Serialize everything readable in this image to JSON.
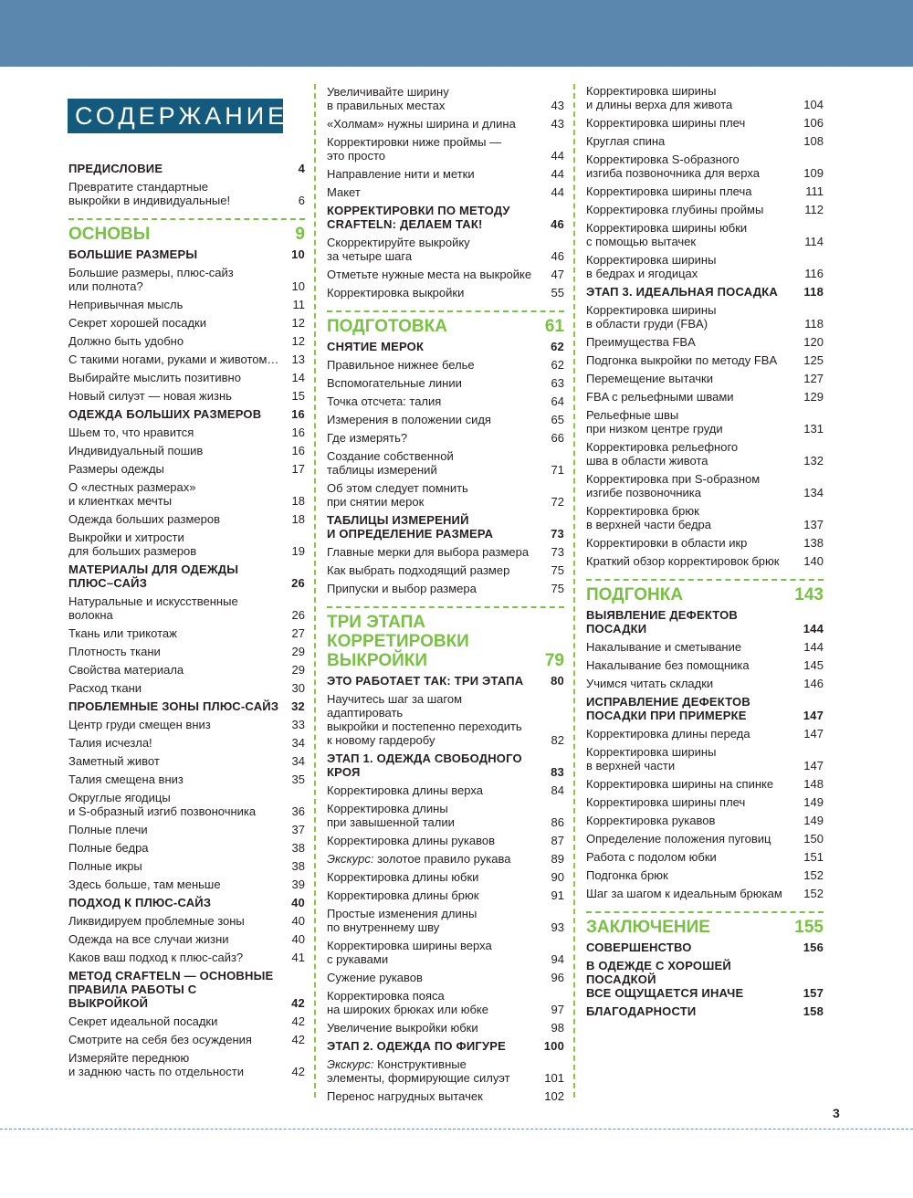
{
  "title": "СОДЕРЖАНИЕ",
  "page_number": "3",
  "colors": {
    "band": "#5b86ad",
    "title_bg": "#135a7c",
    "section": "#79c143"
  },
  "columns": [
    [
      {
        "t": "head",
        "lines": [
          "ПРЕДИСЛОВИЕ"
        ],
        "p": "4"
      },
      {
        "t": "sub",
        "lines": [
          "Превратите стандартные",
          "выкройки в индивидуальные!"
        ],
        "p": "6"
      },
      {
        "t": "section",
        "lines": [
          "ОСНОВЫ"
        ],
        "p": "9"
      },
      {
        "t": "head",
        "lines": [
          "БОЛЬШИЕ РАЗМЕРЫ"
        ],
        "p": "10"
      },
      {
        "t": "sub",
        "lines": [
          "Большие размеры, плюс-сайз",
          "или полнота?"
        ],
        "p": "10"
      },
      {
        "t": "sub",
        "lines": [
          "Непривычная мысль"
        ],
        "p": "11"
      },
      {
        "t": "sub",
        "lines": [
          "Секрет хорошей посадки"
        ],
        "p": "12"
      },
      {
        "t": "sub",
        "lines": [
          "Должно быть удобно"
        ],
        "p": "12"
      },
      {
        "t": "sub",
        "lines": [
          "С такими ногами, руками и животом…"
        ],
        "p": "13"
      },
      {
        "t": "sub",
        "lines": [
          "Выбирайте мыслить позитивно"
        ],
        "p": "14"
      },
      {
        "t": "sub",
        "lines": [
          "Новый силуэт — новая жизнь"
        ],
        "p": "15"
      },
      {
        "t": "head",
        "lines": [
          "ОДЕЖДА БОЛЬШИХ РАЗМЕРОВ"
        ],
        "p": "16"
      },
      {
        "t": "sub",
        "lines": [
          "Шьем то, что нравится"
        ],
        "p": "16"
      },
      {
        "t": "sub",
        "lines": [
          "Индивидуальный пошив"
        ],
        "p": "16"
      },
      {
        "t": "sub",
        "lines": [
          "Размеры одежды"
        ],
        "p": "17"
      },
      {
        "t": "sub",
        "lines": [
          "О «лестных размерах»",
          "и клиентках мечты"
        ],
        "p": "18"
      },
      {
        "t": "sub",
        "lines": [
          "Одежда больших размеров"
        ],
        "p": "18"
      },
      {
        "t": "sub",
        "lines": [
          "Выкройки и хитрости",
          "для больших размеров"
        ],
        "p": "19"
      },
      {
        "t": "head",
        "lines": [
          "МАТЕРИАЛЫ ДЛЯ ОДЕЖДЫ",
          "ПЛЮС–САЙЗ"
        ],
        "p": "26"
      },
      {
        "t": "sub",
        "lines": [
          "Натуральные и искусственные волокна"
        ],
        "p": "26"
      },
      {
        "t": "sub",
        "lines": [
          "Ткань или трикотаж"
        ],
        "p": "27"
      },
      {
        "t": "sub",
        "lines": [
          "Плотность ткани"
        ],
        "p": "29"
      },
      {
        "t": "sub",
        "lines": [
          "Свойства материала"
        ],
        "p": "29"
      },
      {
        "t": "sub",
        "lines": [
          "Расход ткани"
        ],
        "p": "30"
      },
      {
        "t": "head",
        "lines": [
          "ПРОБЛЕМНЫЕ ЗОНЫ ПЛЮС-САЙЗ"
        ],
        "p": "32"
      },
      {
        "t": "sub",
        "lines": [
          "Центр груди смещен вниз"
        ],
        "p": "33"
      },
      {
        "t": "sub",
        "lines": [
          "Талия исчезла!"
        ],
        "p": "34"
      },
      {
        "t": "sub",
        "lines": [
          "Заметный живот"
        ],
        "p": "34"
      },
      {
        "t": "sub",
        "lines": [
          "Талия смещена вниз"
        ],
        "p": "35"
      },
      {
        "t": "sub",
        "lines": [
          "Округлые ягодицы",
          "и S-образный изгиб позвоночника"
        ],
        "p": "36"
      },
      {
        "t": "sub",
        "lines": [
          "Полные плечи"
        ],
        "p": "37"
      },
      {
        "t": "sub",
        "lines": [
          "Полные бедра"
        ],
        "p": "38"
      },
      {
        "t": "sub",
        "lines": [
          "Полные икры"
        ],
        "p": "38"
      },
      {
        "t": "sub",
        "lines": [
          "Здесь больше, там меньше"
        ],
        "p": "39"
      },
      {
        "t": "head",
        "lines": [
          "ПОДХОД К ПЛЮС-САЙЗ"
        ],
        "p": "40"
      },
      {
        "t": "sub",
        "lines": [
          "Ликвидируем проблемные зоны"
        ],
        "p": "40"
      },
      {
        "t": "sub",
        "lines": [
          "Одежда на все случаи жизни"
        ],
        "p": "40"
      },
      {
        "t": "sub",
        "lines": [
          "Каков ваш подход к плюс-сайз?"
        ],
        "p": "41"
      },
      {
        "t": "head",
        "lines": [
          "МЕТОД CRAFTELN — ОСНОВНЫЕ",
          "ПРАВИЛА РАБОТЫ С ВЫКРОЙКОЙ"
        ],
        "p": "42"
      },
      {
        "t": "sub",
        "lines": [
          "Секрет идеальной посадки"
        ],
        "p": "42"
      },
      {
        "t": "sub",
        "lines": [
          "Смотрите на себя без осуждения"
        ],
        "p": "42"
      },
      {
        "t": "sub",
        "lines": [
          "Измеряйте переднюю",
          "и заднюю часть по отдельности"
        ],
        "p": "42"
      }
    ],
    [
      {
        "t": "sub",
        "lines": [
          "Увеличивайте ширину",
          "в правильных местах"
        ],
        "p": "43"
      },
      {
        "t": "sub",
        "lines": [
          "«Холмам» нужны ширина и длина"
        ],
        "p": "43"
      },
      {
        "t": "sub",
        "lines": [
          "Корректировки ниже проймы —",
          "это просто"
        ],
        "p": "44"
      },
      {
        "t": "sub",
        "lines": [
          "Направление нити и метки"
        ],
        "p": "44"
      },
      {
        "t": "sub",
        "lines": [
          "Макет"
        ],
        "p": "44"
      },
      {
        "t": "head",
        "lines": [
          "КОРРЕКТИРОВКИ ПО МЕТОДУ",
          "CRAFTELN: ДЕЛАЕМ ТАК!"
        ],
        "p": "46"
      },
      {
        "t": "sub",
        "lines": [
          "Скорректируйте выкройку",
          "за четыре шага"
        ],
        "p": "46"
      },
      {
        "t": "sub",
        "lines": [
          "Отметьте нужные места на выкройке"
        ],
        "p": "47"
      },
      {
        "t": "sub",
        "lines": [
          "Корректировка выкройки"
        ],
        "p": "55"
      },
      {
        "t": "section",
        "lines": [
          "ПОДГОТОВКА"
        ],
        "p": "61"
      },
      {
        "t": "head",
        "lines": [
          "СНЯТИЕ МЕРОК"
        ],
        "p": "62"
      },
      {
        "t": "sub",
        "lines": [
          "Правильное нижнее белье"
        ],
        "p": "62"
      },
      {
        "t": "sub",
        "lines": [
          "Вспомогательные линии"
        ],
        "p": "63"
      },
      {
        "t": "sub",
        "lines": [
          "Точка отсчета: талия"
        ],
        "p": "64"
      },
      {
        "t": "sub",
        "lines": [
          "Измерения в положении сидя"
        ],
        "p": "65"
      },
      {
        "t": "sub",
        "lines": [
          "Где измерять?"
        ],
        "p": "66"
      },
      {
        "t": "sub",
        "lines": [
          "Создание собственной",
          "таблицы измерений"
        ],
        "p": "71"
      },
      {
        "t": "sub",
        "lines": [
          "Об этом следует помнить",
          "при снятии мерок"
        ],
        "p": "72"
      },
      {
        "t": "head",
        "lines": [
          "ТАБЛИЦЫ ИЗМЕРЕНИЙ",
          "И ОПРЕДЕЛЕНИЕ РАЗМЕРА"
        ],
        "p": "73"
      },
      {
        "t": "sub",
        "lines": [
          "Главные мерки для выбора размера"
        ],
        "p": "73"
      },
      {
        "t": "sub",
        "lines": [
          "Как выбрать подходящий размер"
        ],
        "p": "75"
      },
      {
        "t": "sub",
        "lines": [
          "Припуски и выбор размера"
        ],
        "p": "75"
      },
      {
        "t": "section",
        "lines": [
          "ТРИ ЭТАПА КОРРЕТИРОВКИ",
          "ВЫКРОЙКИ"
        ],
        "p": "79"
      },
      {
        "t": "head",
        "lines": [
          "ЭТО РАБОТАЕТ ТАК: ТРИ ЭТАПА"
        ],
        "p": "80"
      },
      {
        "t": "sub",
        "lines": [
          "Научитесь шаг за шагом адаптировать",
          "выкройки и постепенно переходить",
          "к новому гардеробу"
        ],
        "p": "82"
      },
      {
        "t": "head",
        "lines": [
          "ЭТАП 1. ОДЕЖДА СВОБОДНОГО КРОЯ"
        ],
        "p": "83"
      },
      {
        "t": "sub",
        "lines": [
          "Корректировка длины верха"
        ],
        "p": "84"
      },
      {
        "t": "sub",
        "lines": [
          "Корректировка длины",
          "при завышенной талии"
        ],
        "p": "86"
      },
      {
        "t": "sub",
        "lines": [
          "Корректировка длины рукавов"
        ],
        "p": "87"
      },
      {
        "t": "sub",
        "em": "Экскурс:",
        "lines": [
          " золотое правило рукава"
        ],
        "p": "89"
      },
      {
        "t": "sub",
        "lines": [
          "Корректировка длины юбки"
        ],
        "p": "90"
      },
      {
        "t": "sub",
        "lines": [
          "Корректировка длины брюк"
        ],
        "p": "91"
      },
      {
        "t": "sub",
        "lines": [
          "Простые изменения длины",
          "по внутреннему шву"
        ],
        "p": "93"
      },
      {
        "t": "sub",
        "lines": [
          "Корректировка ширины верха",
          "с рукавами"
        ],
        "p": "94"
      },
      {
        "t": "sub",
        "lines": [
          "Сужение рукавов"
        ],
        "p": "96"
      },
      {
        "t": "sub",
        "lines": [
          "Корректировка пояса",
          "на широких брюках или юбке"
        ],
        "p": "97"
      },
      {
        "t": "sub",
        "lines": [
          "Увеличение выкройки юбки"
        ],
        "p": "98"
      },
      {
        "t": "head",
        "lines": [
          "ЭТАП 2. ОДЕЖДА ПО ФИГУРЕ"
        ],
        "p": "100"
      },
      {
        "t": "sub",
        "em": "Экскурс:",
        "lines": [
          " Конструктивные",
          "элементы, формирующие силуэт"
        ],
        "p": "101"
      },
      {
        "t": "sub",
        "lines": [
          "Перенос нагрудных вытачек"
        ],
        "p": "102"
      }
    ],
    [
      {
        "t": "sub",
        "lines": [
          "Корректировка ширины",
          "и длины верха для живота"
        ],
        "p": "104"
      },
      {
        "t": "sub",
        "lines": [
          "Корректировка ширины плеч"
        ],
        "p": "106"
      },
      {
        "t": "sub",
        "lines": [
          "Круглая спина"
        ],
        "p": "108"
      },
      {
        "t": "sub",
        "lines": [
          "Корректировка S-образного",
          "изгиба позвоночника для верха"
        ],
        "p": "109"
      },
      {
        "t": "sub",
        "lines": [
          "Корректировка ширины плеча"
        ],
        "p": "111"
      },
      {
        "t": "sub",
        "lines": [
          "Корректировка глубины проймы"
        ],
        "p": "112"
      },
      {
        "t": "sub",
        "lines": [
          "Корректировка ширины юбки",
          "с помощью вытачек"
        ],
        "p": "114"
      },
      {
        "t": "sub",
        "lines": [
          "Корректировка ширины",
          "в бедрах и ягодицах"
        ],
        "p": "116"
      },
      {
        "t": "head",
        "lines": [
          "ЭТАП 3. ИДЕАЛЬНАЯ ПОСАДКА"
        ],
        "p": "118"
      },
      {
        "t": "sub",
        "lines": [
          "Корректировка ширины",
          "в области груди (FBA)"
        ],
        "p": "118"
      },
      {
        "t": "sub",
        "lines": [
          "Преимущества FBA"
        ],
        "p": "120"
      },
      {
        "t": "sub",
        "lines": [
          "Подгонка выкройки по методу FBA"
        ],
        "p": "125"
      },
      {
        "t": "sub",
        "lines": [
          "Перемещение вытачки"
        ],
        "p": "127"
      },
      {
        "t": "sub",
        "lines": [
          "FBA с рельефными швами"
        ],
        "p": "129"
      },
      {
        "t": "sub",
        "lines": [
          "Рельефные швы",
          "при низком центре груди"
        ],
        "p": "131"
      },
      {
        "t": "sub",
        "lines": [
          "Корректировка рельефного",
          "шва в области живота"
        ],
        "p": "132"
      },
      {
        "t": "sub",
        "lines": [
          "Корректировка при S-образном",
          "изгибе позвоночника"
        ],
        "p": "134"
      },
      {
        "t": "sub",
        "lines": [
          "Корректировка брюк",
          "в верхней части бедра"
        ],
        "p": "137"
      },
      {
        "t": "sub",
        "lines": [
          "Корректировки в области икр"
        ],
        "p": "138"
      },
      {
        "t": "sub",
        "lines": [
          "Краткий обзор корректировок брюк"
        ],
        "p": "140"
      },
      {
        "t": "section",
        "lines": [
          "ПОДГОНКА"
        ],
        "p": "143"
      },
      {
        "t": "head",
        "lines": [
          "ВЫЯВЛЕНИЕ ДЕФЕКТОВ ПОСАДКИ"
        ],
        "p": "144"
      },
      {
        "t": "sub",
        "lines": [
          "Накалывание и сметывание"
        ],
        "p": "144"
      },
      {
        "t": "sub",
        "lines": [
          "Накалывание без помощника"
        ],
        "p": "145"
      },
      {
        "t": "sub",
        "lines": [
          "Учимся читать складки"
        ],
        "p": "146"
      },
      {
        "t": "head",
        "lines": [
          "ИСПРАВЛЕНИЕ ДЕФЕКТОВ",
          "ПОСАДКИ ПРИ ПРИМЕРКЕ"
        ],
        "p": "147"
      },
      {
        "t": "sub",
        "lines": [
          "Корректировка длины переда"
        ],
        "p": "147"
      },
      {
        "t": "sub",
        "lines": [
          "Корректировка ширины",
          "в верхней части"
        ],
        "p": "147"
      },
      {
        "t": "sub",
        "lines": [
          "Корректировка ширины на спинке"
        ],
        "p": "148"
      },
      {
        "t": "sub",
        "lines": [
          "Корректировка ширины плеч"
        ],
        "p": "149"
      },
      {
        "t": "sub",
        "lines": [
          "Корректировка рукавов"
        ],
        "p": "149"
      },
      {
        "t": "sub",
        "lines": [
          "Определение положения пуговиц"
        ],
        "p": "150"
      },
      {
        "t": "sub",
        "lines": [
          "Работа с подолом юбки"
        ],
        "p": "151"
      },
      {
        "t": "sub",
        "lines": [
          "Подгонка брюк"
        ],
        "p": "152"
      },
      {
        "t": "sub",
        "lines": [
          "Шаг за шагом к идеальным брюкам"
        ],
        "p": "152"
      },
      {
        "t": "section",
        "lines": [
          "ЗАКЛЮЧЕНИЕ"
        ],
        "p": "155"
      },
      {
        "t": "head",
        "lines": [
          "СОВЕРШЕНСТВО"
        ],
        "p": "156"
      },
      {
        "t": "head",
        "lines": [
          "В ОДЕЖДЕ С ХОРОШЕЙ ПОСАДКОЙ",
          "ВСЕ ОЩУЩАЕТСЯ ИНАЧЕ"
        ],
        "p": "157"
      },
      {
        "t": "head",
        "lines": [
          "БЛАГОДАРНОСТИ"
        ],
        "p": "158"
      }
    ]
  ]
}
